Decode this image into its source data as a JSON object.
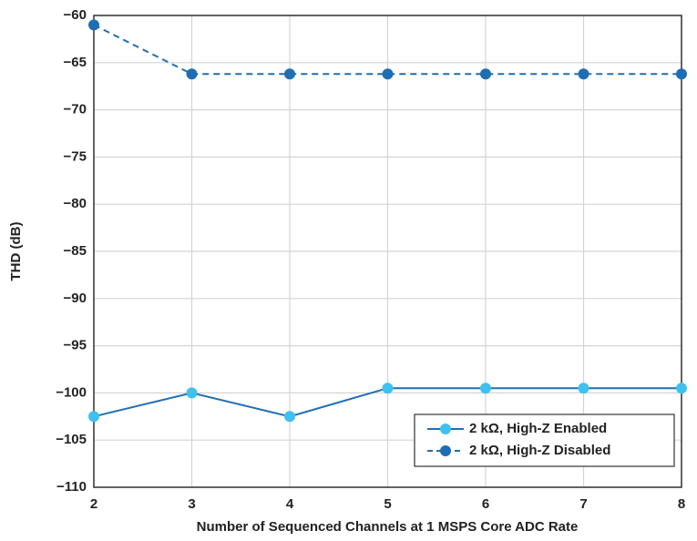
{
  "chart_data": {
    "type": "line",
    "xlabel": "Number of Sequenced Channels at 1 MSPS Core ADC Rate",
    "ylabel": "THD (dB)",
    "x": [
      2,
      3,
      4,
      5,
      6,
      7,
      8
    ],
    "series": [
      {
        "name": "2 kΩ, High-Z Enabled",
        "color": "#1f6eb4",
        "marker_color": "#3ec1f0",
        "dashed": false,
        "values": [
          -102.5,
          -100,
          -102.5,
          -99.5,
          -99.5,
          -99.5,
          -99.5
        ]
      },
      {
        "name": "2 kΩ, High-Z Disabled",
        "color": "#1f6eb4",
        "marker_color": "#1f6eb4",
        "dashed": true,
        "values": [
          -61,
          -66.2,
          -66.2,
          -66.2,
          -66.2,
          -66.2,
          -66.2
        ]
      }
    ],
    "xlim": [
      2,
      8
    ],
    "xticks": [
      2,
      3,
      4,
      5,
      6,
      7,
      8
    ],
    "ylim": [
      -110,
      -60
    ],
    "yticks": [
      {
        "value": -60,
        "label": "−60"
      },
      {
        "value": -65,
        "label": "−65"
      },
      {
        "value": -70,
        "label": "−70"
      },
      {
        "value": -75,
        "label": "−75"
      },
      {
        "value": -80,
        "label": "−80"
      },
      {
        "value": -85,
        "label": "−85"
      },
      {
        "value": -90,
        "label": "−90"
      },
      {
        "value": -95,
        "label": "−95"
      },
      {
        "value": -100,
        "label": "−100"
      },
      {
        "value": -105,
        "label": "−105"
      },
      {
        "value": -110,
        "label": "−110"
      }
    ],
    "grid": true,
    "legend": "lower right"
  }
}
